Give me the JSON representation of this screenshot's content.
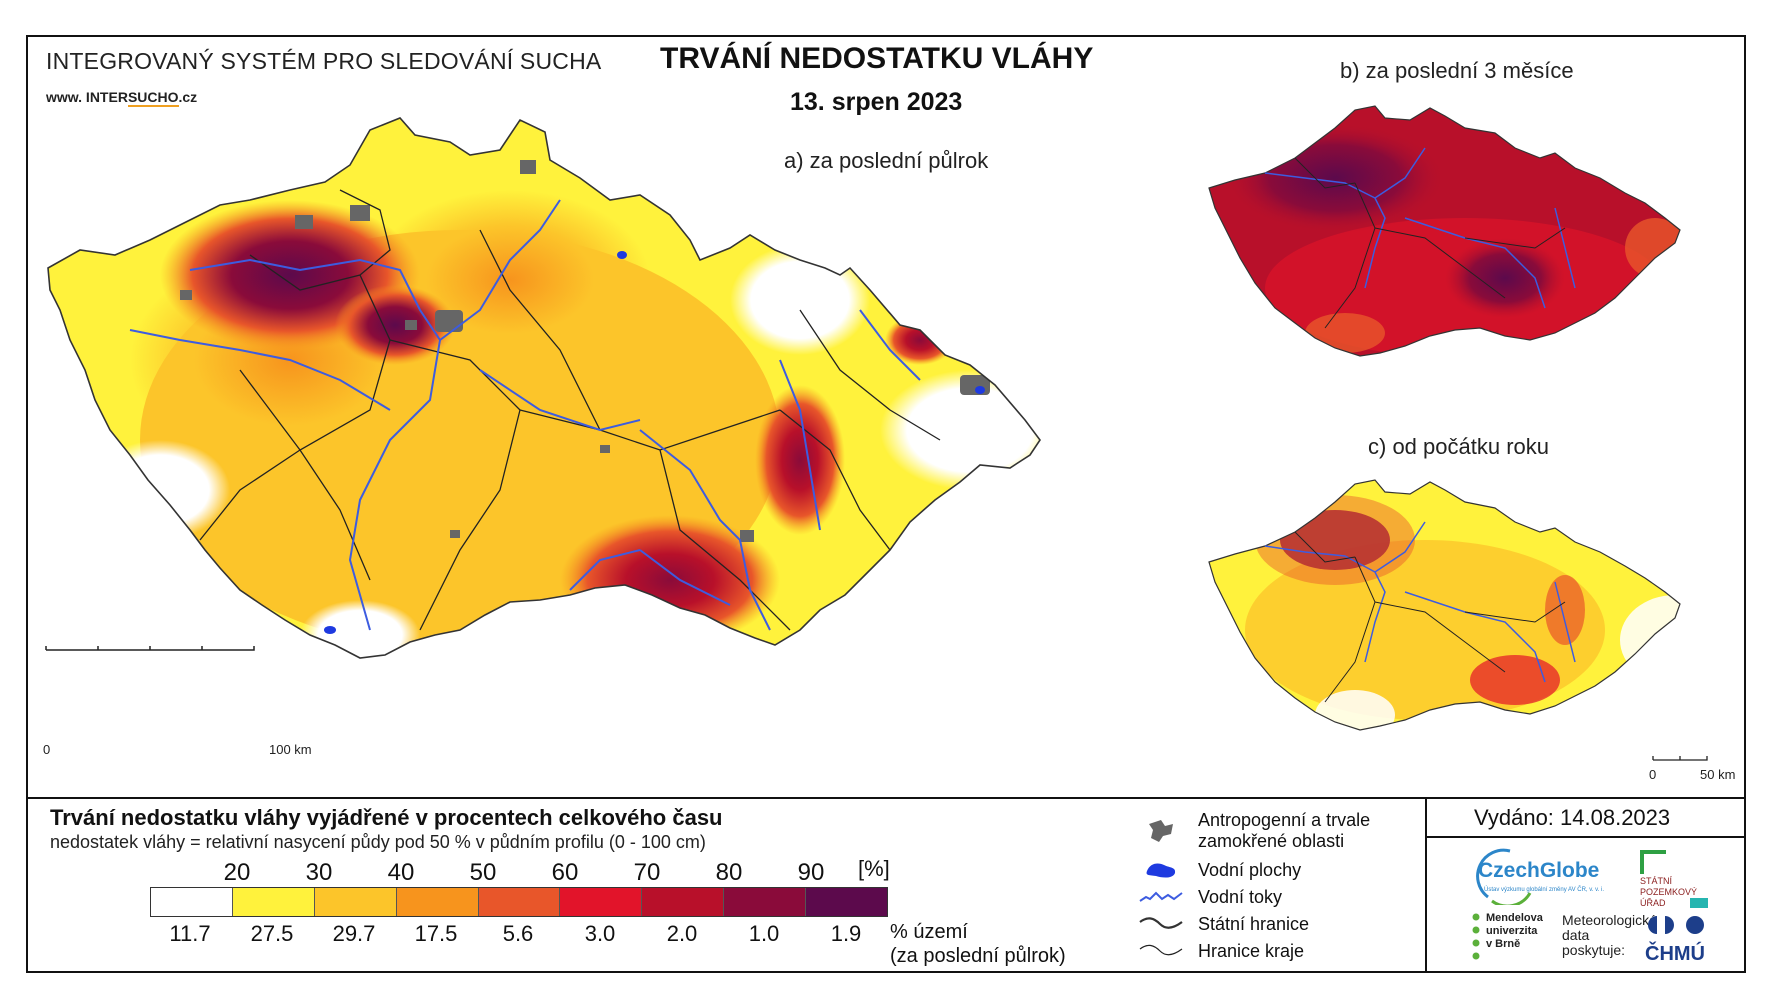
{
  "header": {
    "system_title": "INTEGROVANÝ SYSTÉM PRO SLEDOVÁNÍ SUCHA",
    "website_prefix": "www. INTER",
    "website_highlight": "SUCHO",
    "website_suffix": ".cz",
    "main_title": "TRVÁNÍ NEDOSTATKU VLÁHY",
    "date": "13. srpen 2023"
  },
  "panels": {
    "a": "a) za poslední půlrok",
    "b": "b) za poslední 3 měsíce",
    "c": "c) od počátku roku"
  },
  "scalebars": {
    "main": {
      "start": "0",
      "end": "100 km"
    },
    "small": {
      "start": "0",
      "end": "50 km"
    }
  },
  "legend": {
    "title": "Trvání nedostatku vláhy vyjádřené v procentech celkového času",
    "subtitle": "nedostatek vláhy = relativní nasycení půdy pod 50 % v půdním profilu (0 - 100 cm)",
    "unit": "[%]",
    "thresholds": [
      "20",
      "30",
      "40",
      "50",
      "60",
      "70",
      "80",
      "90"
    ],
    "classes": [
      {
        "color": "#ffffff",
        "percent": "11.7"
      },
      {
        "color": "#fff23c",
        "percent": "27.5"
      },
      {
        "color": "#fcc52a",
        "percent": "29.7"
      },
      {
        "color": "#f7941d",
        "percent": "17.5"
      },
      {
        "color": "#e8562a",
        "percent": "5.6"
      },
      {
        "color": "#e2142a",
        "percent": "3.0"
      },
      {
        "color": "#b8102a",
        "percent": "2.0"
      },
      {
        "color": "#8a0b3a",
        "percent": "1.0"
      },
      {
        "color": "#5c0a4c",
        "percent": "1.9"
      }
    ],
    "percent_label_line1": "% území",
    "percent_label_line2": "(za poslední půlrok)"
  },
  "symbols": [
    {
      "icon": "anthropogenic-area-icon",
      "label_line1": "Antropogenní a trvale",
      "label_line2": "zamokřené oblasti"
    },
    {
      "icon": "water-body-icon",
      "label_line1": "Vodní plochy"
    },
    {
      "icon": "river-icon",
      "label_line1": "Vodní toky"
    },
    {
      "icon": "state-border-icon",
      "label_line1": "Státní hranice"
    },
    {
      "icon": "region-border-icon",
      "label_line1": "Hranice kraje"
    }
  ],
  "footer": {
    "issued": "Vydáno: 14.08.2023",
    "czechglobe": "CzechGlobe",
    "czechglobe_sub": "Ústav výzkumu globální změny AV ČR, v. v. i.",
    "spu_line1": "STÁTNÍ",
    "spu_line2": "POZEMKOVÝ",
    "spu_line3": "ÚŘAD",
    "mendel_line1": "Mendelova",
    "mendel_line2": "univerzita",
    "mendel_line3": "v Brně",
    "meteo_line1": "Meteorologická",
    "meteo_line2": "data",
    "meteo_line3": "poskytuje:",
    "chmu": "ČHMÚ"
  }
}
